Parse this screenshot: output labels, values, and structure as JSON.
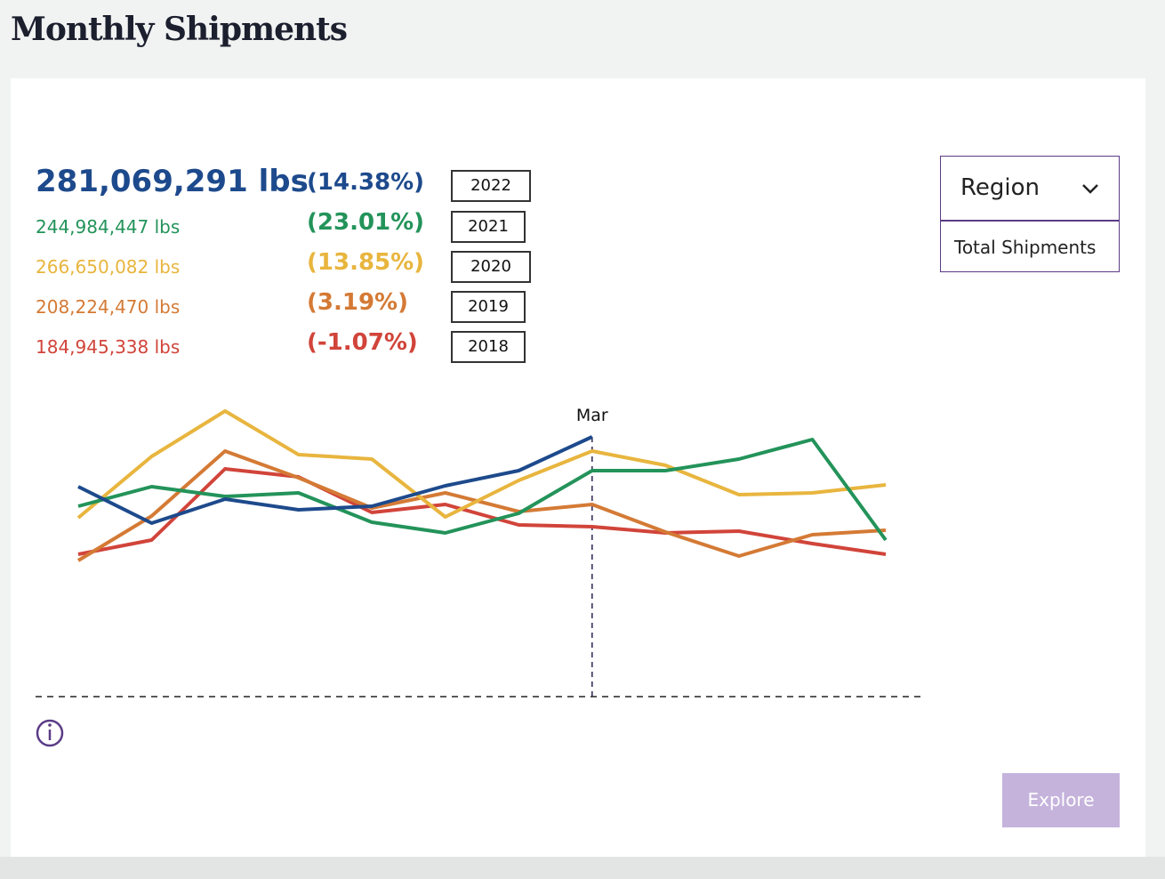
{
  "header": {
    "title": "Monthly Shipments"
  },
  "summary": [
    {
      "total": "281,069,291 lbs",
      "change": "(14.38%)",
      "year": "2022",
      "color": "#1d4a8c"
    },
    {
      "total": "244,984,447 lbs",
      "change": "(23.01%)",
      "year": "2021",
      "color": "#23935a"
    },
    {
      "total": "266,650,082 lbs",
      "change": "(13.85%)",
      "year": "2020",
      "color": "#e8b53e"
    },
    {
      "total": "208,224,470 lbs",
      "change": "(3.19%)",
      "year": "2019",
      "color": "#d47a35"
    },
    {
      "total": "184,945,338 lbs",
      "change": "(-1.07%)",
      "year": "2018",
      "color": "#d1443a"
    }
  ],
  "dropdown": {
    "label": "Region",
    "option": "Total Shipments"
  },
  "button": {
    "label": "Explore"
  },
  "chart_data": {
    "type": "line",
    "categories": [
      null,
      null,
      null,
      null,
      null,
      null,
      null,
      "Mar",
      null,
      null,
      null,
      null
    ],
    "marker_index": 7,
    "ylim": [
      0,
      340
    ],
    "series": [
      {
        "name": "2022",
        "color": "#1d4a8c",
        "values": [
          236,
          195,
          222,
          210,
          214,
          237,
          254,
          292,
          null,
          null,
          null,
          null
        ]
      },
      {
        "name": "2021",
        "color": "#23935a",
        "values": [
          214,
          236,
          225,
          229,
          196,
          184,
          206,
          254,
          254,
          267,
          289,
          176
        ]
      },
      {
        "name": "2020",
        "color": "#e8b53e",
        "values": [
          201,
          270,
          321,
          272,
          267,
          202,
          243,
          276,
          260,
          227,
          229,
          238
        ]
      },
      {
        "name": "2019",
        "color": "#d47a35",
        "values": [
          153,
          203,
          276,
          246,
          212,
          229,
          208,
          216,
          185,
          158,
          182,
          187
        ]
      },
      {
        "name": "2018",
        "color": "#d1443a",
        "values": [
          160,
          176,
          256,
          247,
          207,
          216,
          193,
          191,
          184,
          186,
          172,
          160
        ]
      }
    ]
  }
}
